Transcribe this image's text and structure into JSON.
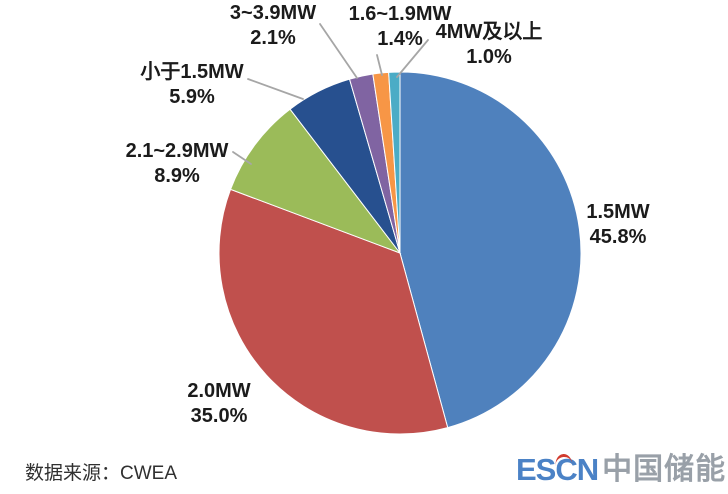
{
  "chart_data": {
    "type": "pie",
    "title": "",
    "unit": "%",
    "direction": "clockwise",
    "start_angle_deg": 0,
    "legend_position": "none",
    "labels_outside": true,
    "leader_line_color": "#a6a6a6",
    "series": [
      {
        "label": "1.5MW",
        "pct_label": "45.8%",
        "value": 45.8,
        "color": "#4f81bd"
      },
      {
        "label": "2.0MW",
        "pct_label": "35.0%",
        "value": 35.0,
        "color": "#c0504d"
      },
      {
        "label": "2.1~2.9MW",
        "pct_label": "8.9%",
        "value": 8.9,
        "color": "#9bbb59"
      },
      {
        "label": "小于1.5MW",
        "pct_label": "5.9%",
        "value": 5.9,
        "color": "#27508f"
      },
      {
        "label": "3~3.9MW",
        "pct_label": "2.1%",
        "value": 2.1,
        "color": "#8064a2"
      },
      {
        "label": "1.6~1.9MW",
        "pct_label": "1.4%",
        "value": 1.4,
        "color": "#f79646"
      },
      {
        "label": "4MW及以上",
        "pct_label": "1.0%",
        "value": 1.0,
        "color": "#4bacc6"
      }
    ]
  },
  "footer": {
    "source_label": "数据来源：CWEA"
  },
  "branding": {
    "logo_latin": "ESCN",
    "logo_cn": "中国储能网",
    "logo_blue": "#4b82c6",
    "logo_gray": "#99a0a8",
    "logo_red": "#d23b2e"
  }
}
